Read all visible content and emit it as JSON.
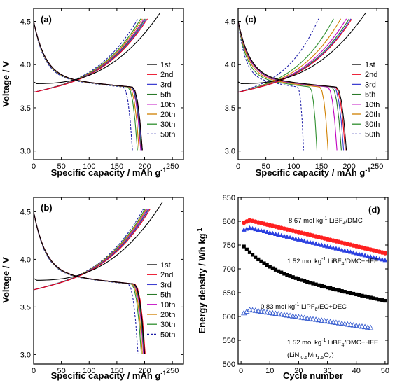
{
  "chart_data": [
    {
      "type": "line",
      "panel_label": "(a)",
      "xlabel": "Specific capacity / mAh g",
      "xlabel_sup": "-1",
      "ylabel": "Voltage / V",
      "xlim": [
        0,
        270
      ],
      "ylim": [
        2.9,
        4.65
      ],
      "xticks": [
        0,
        50,
        100,
        150,
        200,
        250
      ],
      "yticks": [
        3.0,
        3.5,
        4.0,
        4.5
      ],
      "legend_position": "right",
      "series": [
        {
          "name": "1st",
          "color": "#000000",
          "dash": "",
          "charge_cap": 228,
          "discharge_cap": 196,
          "first": true
        },
        {
          "name": "2nd",
          "color": "#e8001a",
          "dash": "",
          "charge_cap": 205,
          "discharge_cap": 196
        },
        {
          "name": "3rd",
          "color": "#3f3fd0",
          "dash": "",
          "charge_cap": 203,
          "discharge_cap": 195
        },
        {
          "name": "5th",
          "color": "#2a7a2a",
          "dash": "",
          "charge_cap": 201,
          "discharge_cap": 194
        },
        {
          "name": "10th",
          "color": "#c000c0",
          "dash": "",
          "charge_cap": 199,
          "discharge_cap": 193
        },
        {
          "name": "20th",
          "color": "#d08000",
          "dash": "",
          "charge_cap": 196,
          "discharge_cap": 190
        },
        {
          "name": "30th",
          "color": "#2f8f2f",
          "dash": "",
          "charge_cap": 193,
          "discharge_cap": 187
        },
        {
          "name": "50th",
          "color": "#1f1fa8",
          "dash": "3,2",
          "charge_cap": 188,
          "discharge_cap": 178
        }
      ]
    },
    {
      "type": "line",
      "panel_label": "(c)",
      "xlabel": "Specific capacity / mAh g",
      "xlabel_sup": "-1",
      "ylabel": "",
      "xlim": [
        0,
        270
      ],
      "ylim": [
        2.9,
        4.65
      ],
      "xticks": [
        0,
        50,
        100,
        150,
        200,
        250
      ],
      "yticks": [
        3.0,
        3.5,
        4.0,
        4.5
      ],
      "legend_position": "right",
      "series": [
        {
          "name": "1st",
          "color": "#000000",
          "dash": "",
          "charge_cap": 230,
          "discharge_cap": 195,
          "first": true
        },
        {
          "name": "2nd",
          "color": "#e8001a",
          "dash": "",
          "charge_cap": 205,
          "discharge_cap": 193
        },
        {
          "name": "3rd",
          "color": "#3f3fd0",
          "dash": "",
          "charge_cap": 203,
          "discharge_cap": 190
        },
        {
          "name": "5th",
          "color": "#2a7a2a",
          "dash": "",
          "charge_cap": 200,
          "discharge_cap": 186
        },
        {
          "name": "10th",
          "color": "#c000c0",
          "dash": "",
          "charge_cap": 195,
          "discharge_cap": 178
        },
        {
          "name": "20th",
          "color": "#d08000",
          "dash": "",
          "charge_cap": 185,
          "discharge_cap": 162
        },
        {
          "name": "30th",
          "color": "#2f8f2f",
          "dash": "",
          "charge_cap": 172,
          "discharge_cap": 142
        },
        {
          "name": "50th",
          "color": "#1f1fa8",
          "dash": "3,2",
          "charge_cap": 145,
          "discharge_cap": 118
        }
      ]
    },
    {
      "type": "line",
      "panel_label": "(b)",
      "xlabel": "Specific capacity / mAh g",
      "xlabel_sup": "-1",
      "ylabel": "Voltage / V",
      "xlim": [
        0,
        270
      ],
      "ylim": [
        2.9,
        4.65
      ],
      "xticks": [
        0,
        50,
        100,
        150,
        200,
        250
      ],
      "yticks": [
        3.0,
        3.5,
        4.0,
        4.5
      ],
      "legend_position": "right",
      "series": [
        {
          "name": "1st",
          "color": "#000000",
          "dash": "",
          "charge_cap": 232,
          "discharge_cap": 200,
          "first": true
        },
        {
          "name": "2nd",
          "color": "#e8001a",
          "dash": "",
          "charge_cap": 210,
          "discharge_cap": 201
        },
        {
          "name": "3rd",
          "color": "#3f3fd0",
          "dash": "",
          "charge_cap": 208,
          "discharge_cap": 200
        },
        {
          "name": "5th",
          "color": "#2a7a2a",
          "dash": "",
          "charge_cap": 207,
          "discharge_cap": 199
        },
        {
          "name": "10th",
          "color": "#c000c0",
          "dash": "",
          "charge_cap": 205,
          "discharge_cap": 198
        },
        {
          "name": "20th",
          "color": "#d08000",
          "dash": "",
          "charge_cap": 203,
          "discharge_cap": 196
        },
        {
          "name": "30th",
          "color": "#2f8f2f",
          "dash": "",
          "charge_cap": 201,
          "discharge_cap": 194
        },
        {
          "name": "50th",
          "color": "#1f1fa8",
          "dash": "3,2",
          "charge_cap": 198,
          "discharge_cap": 188
        }
      ]
    },
    {
      "type": "scatter",
      "panel_label": "(d)",
      "xlabel": "Cycle number",
      "ylabel": "Energy density / Wh kg",
      "ylabel_sup": "-1",
      "xlim": [
        -1,
        51
      ],
      "ylim": [
        500,
        850
      ],
      "xticks": [
        0,
        10,
        20,
        30,
        40,
        50
      ],
      "yticks": [
        500,
        550,
        600,
        650,
        700,
        750,
        800,
        850
      ],
      "series": [
        {
          "name": "8.67 mol kg-1 LiBF4/DMC",
          "color": "#ff2020",
          "marker": "circle",
          "start": 797,
          "peak": 802,
          "end": 733,
          "n": 50
        },
        {
          "name": "1.52 mol kg-1 LiBF4/DMC+HFE",
          "color": "#2a3fe0",
          "marker": "triangle",
          "start": 782,
          "peak": 786,
          "end": 718,
          "n": 50
        },
        {
          "name": "0.83 mol kg-1 LiPF6/EC+DEC",
          "color": "#000000",
          "marker": "square",
          "start": 747,
          "peak": 747,
          "end": 633,
          "n": 50
        },
        {
          "name": "1.52 mol kg-1 LiBF4/DMC+HFE (LiNi0.5Mn1.5O4)",
          "color": "#3a5fd0",
          "marker": "open-triangle",
          "start": 607,
          "peak": 614,
          "end": 576,
          "n": 45
        }
      ]
    }
  ],
  "annotations_d": {
    "a1": {
      "pre": "8.67 mol kg",
      "sup": "-1",
      "mid": " LiBF",
      "sub": "4",
      "post": "/DMC"
    },
    "a2": {
      "pre": "1.52 mol kg",
      "sup": "-1",
      "mid": " LiBF",
      "sub": "4",
      "post": "/DMC+HFE"
    },
    "a3": {
      "pre": "0.83 mol kg",
      "sup": "-1",
      "mid": " LiPF",
      "sub": "6",
      "post": "/EC+DEC"
    },
    "a4": {
      "pre": "1.52 mol kg",
      "sup": "-1",
      "mid": " LiBF",
      "sub": "4",
      "post": "/DMC+HFE"
    },
    "a5": {
      "pre": "(LiNi",
      "sub1": "0.5",
      "mid": "Mn",
      "sub2": "1.5",
      "mid2": "O",
      "sub3": "4",
      "post": ")"
    }
  }
}
